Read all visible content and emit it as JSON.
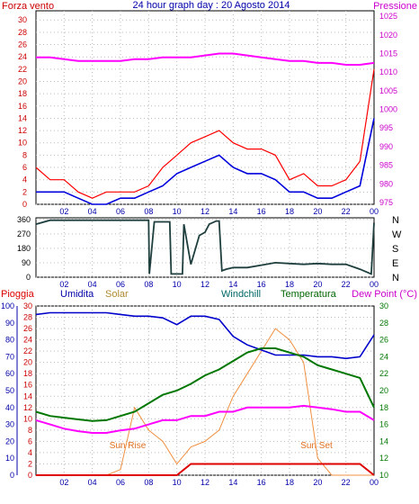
{
  "title": "24 hour graph day : 20 Agosto 2014",
  "colors": {
    "wind": "#ff0000",
    "gust": "#0000dd",
    "pressure": "#ff00ff",
    "direction": "#1f3f3f",
    "humidity": "#0000cc",
    "solar": "#f09040",
    "windchill": "#008888",
    "temperature": "#007700",
    "dewpoint": "#ff00ff",
    "rain": "#dd0000",
    "frame": "#000000",
    "grid": "#bbbbbb",
    "axis_text_blue": "#0000aa"
  },
  "x_ticks": [
    "02",
    "04",
    "06",
    "08",
    "10",
    "12",
    "14",
    "16",
    "18",
    "20",
    "22",
    "00"
  ],
  "chart_data": [
    {
      "type": "line",
      "panel": "wind",
      "title": "24 hour graph day : 20 Agosto 2014",
      "left_label": "Forza vento",
      "right_label": "Pressione",
      "left_ticks": [
        0,
        2,
        4,
        6,
        8,
        10,
        12,
        14,
        16,
        18,
        20,
        22,
        24,
        26,
        28,
        30
      ],
      "left_ylim": [
        0,
        31.5
      ],
      "right_ticks": [
        975,
        980,
        985,
        990,
        995,
        1000,
        1005,
        1010,
        1015,
        1020,
        1025
      ],
      "right_ylim": [
        974.5,
        1026.5
      ],
      "x": [
        0,
        1,
        2,
        3,
        4,
        5,
        6,
        7,
        8,
        9,
        10,
        11,
        12,
        13,
        14,
        15,
        16,
        17,
        18,
        19,
        20,
        21,
        22,
        23,
        24
      ],
      "series": [
        {
          "name": "Forza vento",
          "axis": "left",
          "values": [
            6,
            4,
            4,
            2,
            1,
            2,
            2,
            2,
            3,
            6,
            8,
            10,
            11,
            12,
            10,
            9,
            9,
            8,
            4,
            5,
            3,
            3,
            4,
            7,
            22
          ]
        },
        {
          "name": "gust",
          "axis": "left",
          "values": [
            2,
            2,
            2,
            1,
            0,
            0,
            1,
            1,
            2,
            3,
            5,
            6,
            7,
            8,
            6,
            5,
            5,
            4,
            2,
            2,
            1,
            1,
            2,
            3,
            14
          ]
        },
        {
          "name": "Pressione",
          "axis": "right",
          "values": [
            1014,
            1014,
            1013.5,
            1013,
            1013,
            1013,
            1013,
            1013.5,
            1013.5,
            1014,
            1014,
            1014,
            1014.5,
            1015,
            1015,
            1014.5,
            1014,
            1013.5,
            1013,
            1013,
            1012.5,
            1012.5,
            1012,
            1012,
            1012.5
          ]
        }
      ]
    },
    {
      "type": "line",
      "panel": "direction",
      "left_ticks": [
        0,
        90,
        180,
        270,
        360
      ],
      "left_ylim": [
        0,
        370
      ],
      "right_labels": [
        "N",
        "W",
        "S",
        "E",
        "N"
      ],
      "x": [
        0,
        1,
        2,
        3,
        4,
        5,
        6,
        7,
        8,
        8.05,
        8.4,
        9.5,
        9.6,
        10.4,
        10.5,
        11,
        11.6,
        12,
        12.3,
        12.8,
        13,
        13.2,
        13.5,
        14,
        15,
        16,
        17,
        18,
        19,
        20,
        21,
        22,
        23,
        23.8,
        24
      ],
      "series": [
        {
          "name": "direzione",
          "values": [
            330,
            355,
            355,
            355,
            355,
            355,
            355,
            355,
            355,
            20,
            345,
            345,
            20,
            20,
            330,
            80,
            260,
            280,
            330,
            350,
            350,
            40,
            50,
            60,
            60,
            75,
            90,
            85,
            80,
            85,
            80,
            80,
            50,
            20,
            340
          ]
        }
      ]
    },
    {
      "type": "line",
      "panel": "weather",
      "labels": [
        "Pioggia",
        "Umidita",
        "Solar",
        "Windchill",
        "Temperatura",
        "Dew Point (°C)"
      ],
      "left_ticks": [
        0,
        2,
        4,
        6,
        8,
        10,
        12,
        14,
        16,
        18,
        20,
        22,
        24,
        26,
        28,
        30
      ],
      "left_ylim": [
        0,
        30
      ],
      "humidity_ticks": [
        0,
        10,
        20,
        30,
        40,
        50,
        60,
        70,
        80,
        90,
        100
      ],
      "right_ticks": [
        10,
        12,
        14,
        16,
        18,
        20,
        22,
        24,
        26,
        28,
        30
      ],
      "right_ylim": [
        10,
        30
      ],
      "annotations": [
        "Sun Rise",
        "Sun Set"
      ],
      "x": [
        0,
        1,
        2,
        3,
        4,
        5,
        6,
        7,
        8,
        9,
        10,
        11,
        12,
        13,
        14,
        15,
        16,
        17,
        18,
        19,
        20,
        21,
        22,
        23,
        24
      ],
      "series": [
        {
          "name": "Umidita",
          "axis": "humidity",
          "values": [
            95,
            96,
            96,
            96,
            96,
            96,
            95,
            94,
            94,
            93,
            89,
            94,
            94,
            92,
            82,
            77,
            74,
            71,
            71,
            71,
            70,
            70,
            69,
            70,
            83
          ]
        },
        {
          "name": "Solar",
          "axis": "left",
          "values": [
            0,
            0,
            0,
            0,
            0,
            0,
            1,
            12,
            8,
            6,
            2,
            5,
            6,
            8,
            14,
            18,
            22,
            26,
            24,
            20,
            3,
            0,
            0,
            0,
            0
          ]
        },
        {
          "name": "Temperatura",
          "axis": "right",
          "values": [
            17.5,
            17,
            16.8,
            16.6,
            16.4,
            16.5,
            17,
            17.5,
            18.5,
            19.5,
            20,
            20.8,
            21.8,
            22.5,
            23.5,
            24.5,
            25,
            25,
            24.5,
            24,
            23,
            22.5,
            22,
            21.5,
            18
          ]
        },
        {
          "name": "Windchill",
          "axis": "right",
          "values": [
            17.5,
            17,
            16.8,
            16.6,
            16.4,
            16.5,
            17,
            17.5,
            18.5,
            19.5,
            20,
            20.8,
            21.8,
            22.5,
            23.5,
            24.5,
            25,
            25,
            24.5,
            24,
            23,
            22.5,
            22,
            21.5,
            18
          ]
        },
        {
          "name": "Dew Point (°C)",
          "axis": "right",
          "values": [
            16.5,
            16,
            15.5,
            15.2,
            15,
            15,
            15.3,
            15.5,
            16,
            16.5,
            16.5,
            17,
            17,
            17.5,
            17.5,
            18,
            18,
            18,
            18,
            18.2,
            18,
            17.8,
            17.5,
            17.5,
            16.5
          ]
        },
        {
          "name": "Pioggia",
          "axis": "left",
          "values": [
            0,
            0,
            0,
            0,
            0,
            0,
            0,
            0,
            0,
            0,
            0,
            2,
            2,
            2,
            2,
            2,
            2,
            2,
            2,
            2,
            2,
            2,
            2,
            2,
            0
          ]
        }
      ]
    }
  ]
}
